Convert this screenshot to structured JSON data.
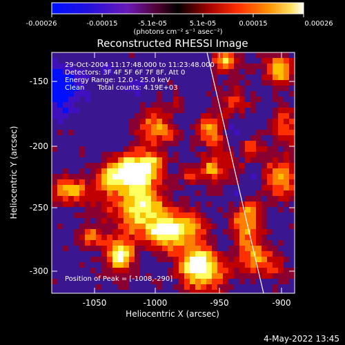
{
  "title": "Reconstructed RHESSI Image",
  "colorbar": {
    "tick_labels": [
      "-0.00026",
      "-0.00015",
      "-5.1e-05",
      "5.1e-05",
      "0.00015",
      "0.00026"
    ],
    "unit_label": "(photons cm⁻² s⁻¹ asec⁻²)"
  },
  "info_lines": [
    "29-Oct-2004 11:17:48.000 to 11:23:48.000",
    "Detectors: 3F 4F 5F 6F 7F 8F, Att 0",
    "Energy Range: 12.0 - 25.0 keV",
    "Clean      Total counts: 4.19E+03"
  ],
  "peak_label": "Position of Peak = [-1008,-290]",
  "footer_date": "4-May-2022 13:45",
  "axes": {
    "xlabel": "Heliocentric X (arcsec)",
    "ylabel": "Heliocentric Y (arcsec)",
    "x_ticks": [
      "-1050",
      "-1000",
      "-950",
      "-900"
    ],
    "y_ticks": [
      "-150",
      "-200",
      "-250",
      "-300"
    ]
  },
  "colors": {
    "background": "#000000",
    "limb_line": "#ffffff",
    "colormap": [
      "#0010ff",
      "#4010c0",
      "#6a2aa8",
      "#8a0030",
      "#c00000",
      "#ff3000",
      "#ff8000",
      "#ffc000",
      "#ffff60",
      "#ffffff"
    ]
  }
}
